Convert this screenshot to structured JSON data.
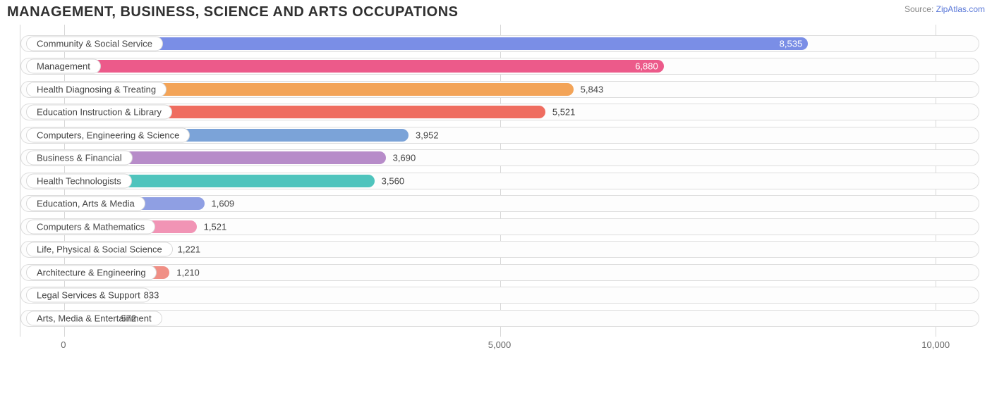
{
  "title": "MANAGEMENT, BUSINESS, SCIENCE AND ARTS OCCUPATIONS",
  "source_prefix": "Source: ",
  "source_name": "ZipAtlas.com",
  "chart": {
    "type": "bar-horizontal",
    "xmin": -500,
    "xmax": 10500,
    "ticks": [
      {
        "value": 0,
        "label": "0"
      },
      {
        "value": 5000,
        "label": "5,000"
      },
      {
        "value": 10000,
        "label": "10,000"
      }
    ],
    "grid_color": "#d7d7d7",
    "track_border": "#dddddd",
    "track_bg": "#fdfdfd",
    "label_border": "#d8d8d8",
    "bars": [
      {
        "label": "Community & Social Service",
        "value": 8535,
        "value_text": "8,535",
        "color": "#7a8ee6",
        "value_inside": true
      },
      {
        "label": "Management",
        "value": 6880,
        "value_text": "6,880",
        "color": "#ec5a8a",
        "value_inside": true
      },
      {
        "label": "Health Diagnosing & Treating",
        "value": 5843,
        "value_text": "5,843",
        "color": "#f3a458",
        "value_inside": false
      },
      {
        "label": "Education Instruction & Library",
        "value": 5521,
        "value_text": "5,521",
        "color": "#ef6d60",
        "value_inside": false
      },
      {
        "label": "Computers, Engineering & Science",
        "value": 3952,
        "value_text": "3,952",
        "color": "#7ba3d8",
        "value_inside": false
      },
      {
        "label": "Business & Financial",
        "value": 3690,
        "value_text": "3,690",
        "color": "#b78cc9",
        "value_inside": false
      },
      {
        "label": "Health Technologists",
        "value": 3560,
        "value_text": "3,560",
        "color": "#4fc4bd",
        "value_inside": false
      },
      {
        "label": "Education, Arts & Media",
        "value": 1609,
        "value_text": "1,609",
        "color": "#8f9fe3",
        "value_inside": false
      },
      {
        "label": "Computers & Mathematics",
        "value": 1521,
        "value_text": "1,521",
        "color": "#f194b5",
        "value_inside": false
      },
      {
        "label": "Life, Physical & Social Science",
        "value": 1221,
        "value_text": "1,221",
        "color": "#f3b77c",
        "value_inside": false
      },
      {
        "label": "Architecture & Engineering",
        "value": 1210,
        "value_text": "1,210",
        "color": "#f08f85",
        "value_inside": false
      },
      {
        "label": "Legal Services & Support",
        "value": 833,
        "value_text": "833",
        "color": "#97b7de",
        "value_inside": false
      },
      {
        "label": "Arts, Media & Entertainment",
        "value": 572,
        "value_text": "572",
        "color": "#c3a6d4",
        "value_inside": false
      }
    ]
  }
}
